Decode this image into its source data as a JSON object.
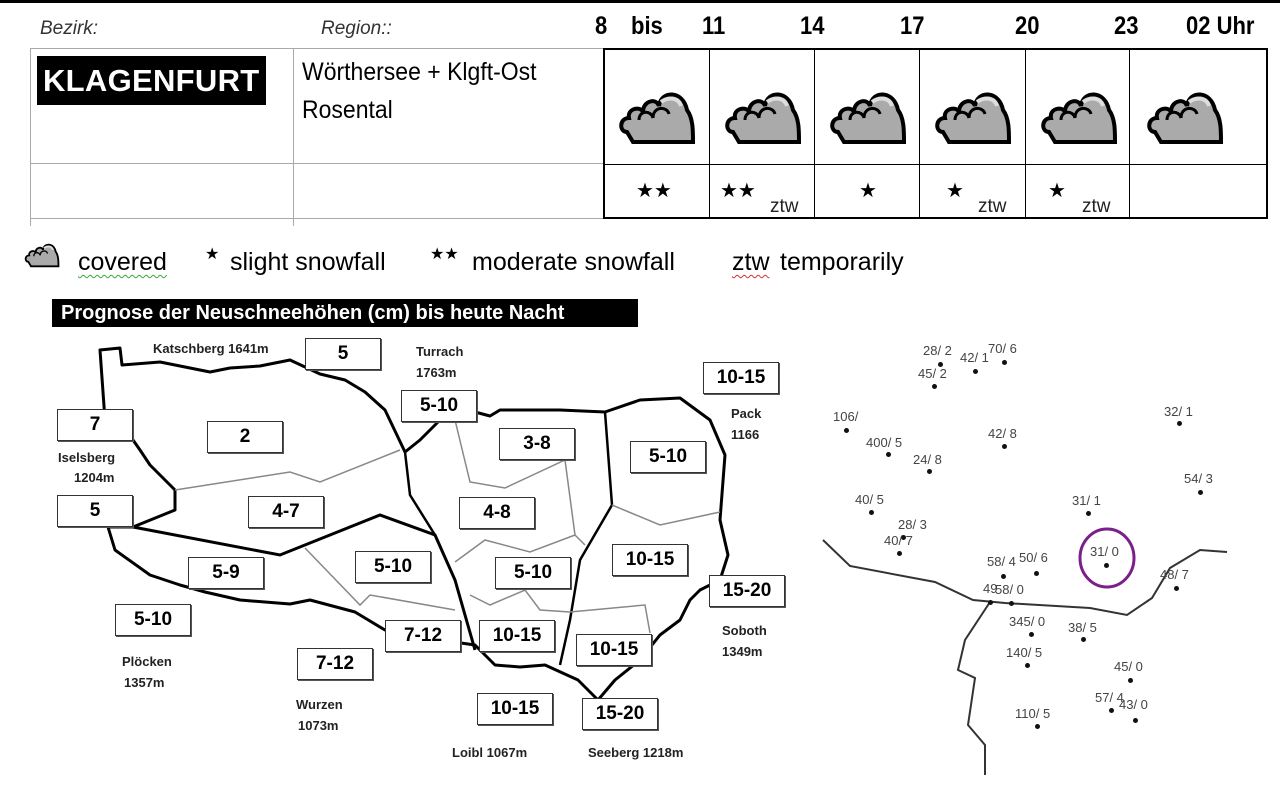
{
  "header": {
    "bezirk_label": "Bezirk:",
    "region_label": "Region::",
    "times": [
      "8",
      "bis",
      "11",
      "14",
      "17",
      "20",
      "23",
      "02 Uhr"
    ]
  },
  "district": "KLAGENFURT",
  "region": {
    "line1": "Wörthersee + Klgft-Ost",
    "line2": "Rosental"
  },
  "forecast": [
    {
      "icon": "cloud-covered-icon",
      "stars": "★★",
      "note": ""
    },
    {
      "icon": "cloud-covered-icon",
      "stars": "★★",
      "note": "ztw"
    },
    {
      "icon": "cloud-covered-icon",
      "stars": "★",
      "note": ""
    },
    {
      "icon": "cloud-covered-icon",
      "stars": "★",
      "note": "ztw"
    },
    {
      "icon": "cloud-covered-icon",
      "stars": "★",
      "note": "ztw"
    },
    {
      "icon": "cloud-covered-icon",
      "stars": "",
      "note": ""
    }
  ],
  "legend": {
    "covered": "covered",
    "slight_symbol": "★",
    "slight": "slight snowfall",
    "moderate_symbol": "★★",
    "moderate": "moderate snowfall",
    "ztw": "ztw",
    "ztw_text": "temporarily"
  },
  "map": {
    "title": "Prognose der Neuschneehöhen (cm) bis heute Nacht",
    "values": [
      "5",
      "7",
      "2",
      "5-10",
      "3-8",
      "10-15",
      "5-10",
      "5",
      "4-7",
      "4-8",
      "5-10",
      "10-15",
      "5-9",
      "5-10",
      "15-20",
      "5-10",
      "7-12",
      "10-15",
      "10-15",
      "7-12",
      "10-15",
      "15-20"
    ],
    "places": [
      "Katschberg 1641m",
      "Turrach",
      "1763m",
      "Pack",
      "1166",
      "Iselsberg",
      "1204m",
      "Plöcken",
      "1357m",
      "Wurzen",
      "1073m",
      "Loibl 1067m",
      "Seeberg 1218m",
      "Soboth",
      "1349m"
    ]
  },
  "stations": [
    "28/ 2",
    "42/ 1",
    "70/ 6",
    "45/ 2",
    "106/",
    "400/ 5",
    "24/ 8",
    "42/ 8",
    "32/ 1",
    "54/ 3",
    "31/ 1",
    "40/ 5",
    "28/ 3",
    "40/ 7",
    "58/ 4",
    "50/ 6",
    "31/ 0",
    "48/ 7",
    "49",
    "58/ 0",
    "345/ 0",
    "38/ 5",
    "140/ 5",
    "45/ 0",
    "57/ 4",
    "43/ 0",
    "110/ 5"
  ],
  "highlight_color": "#7b1f8a"
}
